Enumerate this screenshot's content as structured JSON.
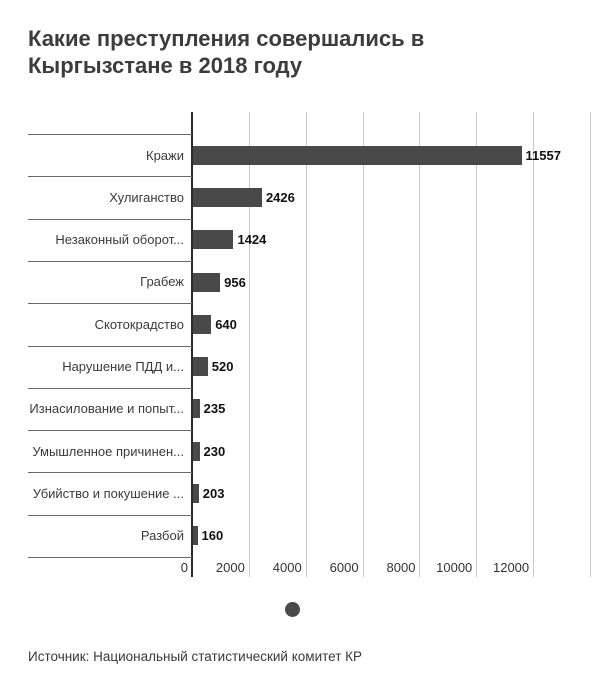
{
  "title": "Какие преступления совершались в Кыргызстане в 2018 году",
  "source": "Источник: Национальный статистический комитет КР",
  "legend": {
    "marker": "dot",
    "color": "#4a4a4a"
  },
  "colors": {
    "bar": "#494949",
    "axis": "#2b2b2b",
    "grid": "#c8c8c8",
    "separator": "#6a6a6a",
    "title_text": "#3c3c3c",
    "label_text": "#3b3b3b",
    "value_text": "#111111"
  },
  "chart_data": {
    "type": "bar",
    "orientation": "horizontal",
    "title": "Какие преступления совершались в Кыргызстане в 2018 году",
    "categories": [
      "Кражи",
      "Хулиганство",
      "Незаконный оборот...",
      "Грабеж",
      "Скотокрадство",
      "Нарушение ПДД и...",
      "Изнасилование и попыт...",
      "Умышленное причинен...",
      "Убийство и покушение ...",
      "Разбой"
    ],
    "values": [
      11557,
      2426,
      1424,
      956,
      640,
      520,
      235,
      230,
      203,
      160
    ],
    "value_labels": [
      "11557",
      "2426",
      "1424",
      "956",
      "640",
      "520",
      "235",
      "230",
      "203",
      "160"
    ],
    "x_ticks": [
      0,
      2000,
      4000,
      6000,
      8000,
      10000,
      12000
    ],
    "x_tick_labels": [
      "0",
      "2000",
      "4000",
      "6000",
      "8000",
      "10000",
      "12000"
    ],
    "x_grid_values": [
      2000,
      4000,
      6000,
      8000,
      10000,
      12000,
      14000
    ],
    "xlim": [
      0,
      14000
    ],
    "grid": true,
    "legend_position": "bottom",
    "xlabel": "",
    "ylabel": ""
  }
}
